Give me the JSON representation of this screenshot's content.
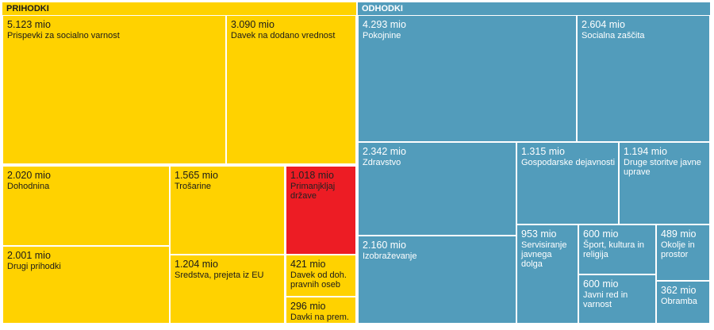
{
  "chart_data": {
    "type": "treemap",
    "groups": [
      {
        "title": "PRIHODKI",
        "color": "#FFD200",
        "items": [
          {
            "value": 5123,
            "value_label": "5.123 mio",
            "label": "Prispevki za socialno varnost"
          },
          {
            "value": 3090,
            "value_label": "3.090 mio",
            "label": "Davek na dodano vrednost"
          },
          {
            "value": 2020,
            "value_label": "2.020 mio",
            "label": "Dohodnina"
          },
          {
            "value": 1565,
            "value_label": "1.565 mio",
            "label": "Trošarine"
          },
          {
            "value": 1018,
            "value_label": "1.018 mio",
            "label": "Primanjkljaj države",
            "color": "#ED1C24"
          },
          {
            "value": 2001,
            "value_label": "2.001 mio",
            "label": "Drugi prihodki"
          },
          {
            "value": 1204,
            "value_label": "1.204 mio",
            "label": "Sredstva, prejeta iz EU"
          },
          {
            "value": 421,
            "value_label": "421 mio",
            "label": "Davek od doh. pravnih oseb"
          },
          {
            "value": 296,
            "value_label": "296 mio",
            "label": "Davki na prem."
          }
        ]
      },
      {
        "title": "ODHODKI",
        "color": "#529CBB",
        "items": [
          {
            "value": 4293,
            "value_label": "4.293 mio",
            "label": "Pokojnine"
          },
          {
            "value": 2604,
            "value_label": "2.604 mio",
            "label": "Socialna zaščita"
          },
          {
            "value": 2342,
            "value_label": "2.342 mio",
            "label": "Zdravstvo"
          },
          {
            "value": 1315,
            "value_label": "1.315 mio",
            "label": "Gospodarske dejavnosti"
          },
          {
            "value": 1194,
            "value_label": "1.194 mio",
            "label": "Druge storitve javne uprave"
          },
          {
            "value": 2160,
            "value_label": "2.160 mio",
            "label": "Izobraževanje"
          },
          {
            "value": 953,
            "value_label": "953 mio",
            "label": "Servisiranje javnega dolga"
          },
          {
            "value": 600,
            "value_label": "600 mio",
            "label": "Šport, kultura in religija"
          },
          {
            "value": 489,
            "value_label": "489 mio",
            "label": "Okolje in prostor"
          },
          {
            "value": 600,
            "value_label": "600 mio",
            "label": "Javni red in varnost"
          },
          {
            "value": 362,
            "value_label": "362 mio",
            "label": "Obramba"
          }
        ]
      }
    ]
  }
}
